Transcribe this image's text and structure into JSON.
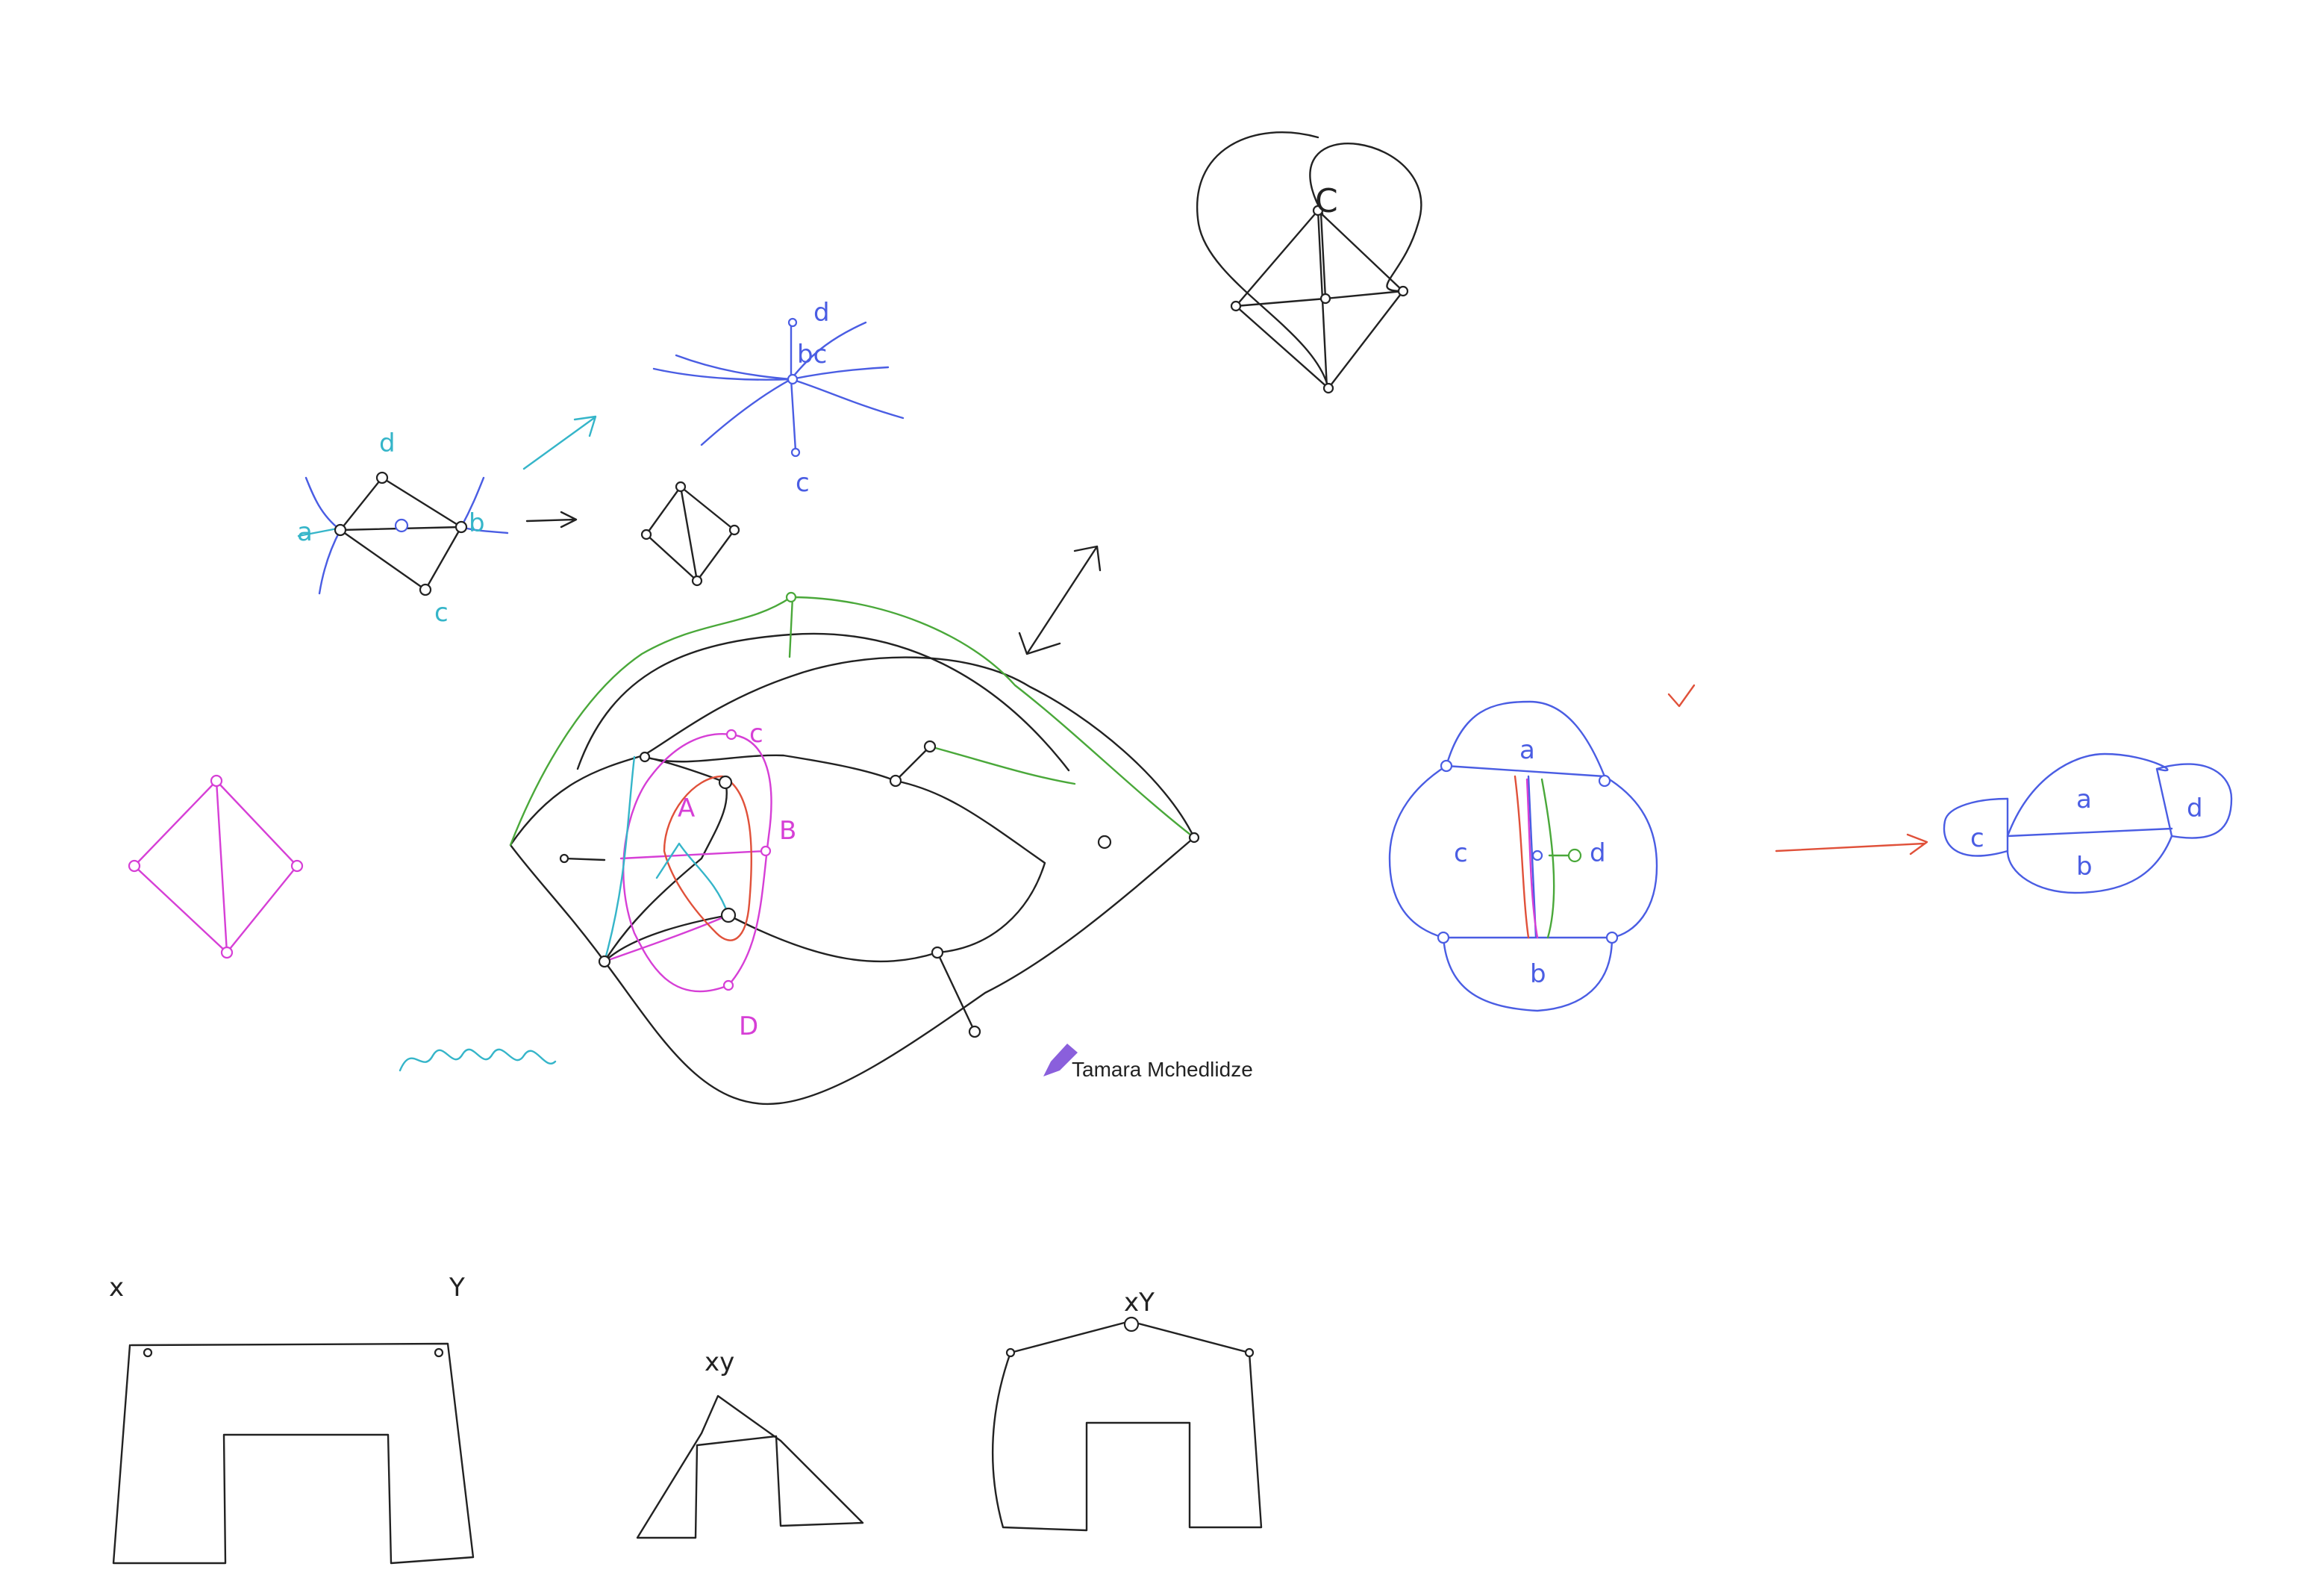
{
  "colors": {
    "ink_black": "#222222",
    "ink_blue": "#4a5de3",
    "ink_cyan": "#35b5c9",
    "ink_magenta": "#d63fd6",
    "ink_green": "#4aa83a",
    "ink_red": "#e0513a",
    "cursor_purple": "#8a5fdc",
    "background": "#ffffff"
  },
  "collaborator": {
    "name": "Tamara Mchedlidze",
    "icon": "pencil-icon"
  },
  "labels": {
    "blue_graph": {
      "d": "d",
      "a": "a",
      "b": "b",
      "c": "c"
    },
    "blue_star": {
      "d": "d",
      "bc": "bc",
      "c": "c"
    },
    "top_right_graph": {
      "c": "C"
    },
    "main_faces": {
      "A": "A",
      "B": "B",
      "C": "c",
      "D": "D"
    },
    "blue_bubble": {
      "a": "a",
      "b": "b",
      "c": "c",
      "d": "d"
    },
    "blue_result": {
      "a": "a",
      "b": "b",
      "c": "c",
      "d": "d"
    },
    "bottom_left": {
      "x": "x",
      "y": "Y"
    },
    "bottom_middle": {
      "xy": "xy"
    },
    "bottom_right": {
      "xy": "xY"
    }
  }
}
